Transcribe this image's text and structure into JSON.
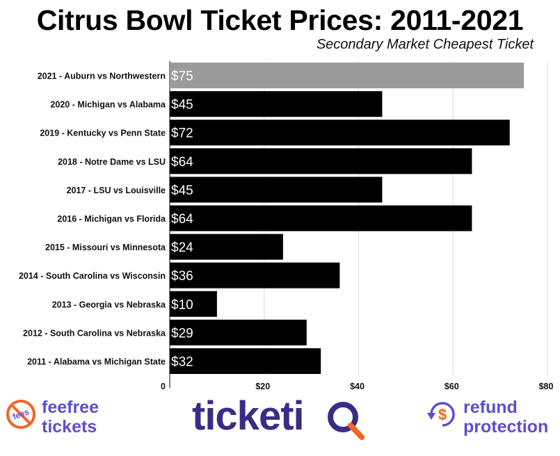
{
  "chart_data": {
    "type": "bar",
    "orientation": "horizontal",
    "title": "Citrus Bowl Ticket Prices: 2011-2021",
    "subtitle": "Secondary Market Cheapest Ticket",
    "categories": [
      "2021 - Auburn vs Northwestern",
      "2020 - Michigan vs Alabama",
      "2019 - Kentucky vs Penn State",
      "2018 - Notre Dame vs LSU",
      "2017 - LSU vs Louisville",
      "2016 - Michigan vs Florida",
      "2015 - Missouri vs Minnesota",
      "2014 - South Carolina vs Wisconsin",
      "2013 - Georgia vs Nebraska",
      "2012 - South Carolina vs Nebraska",
      "2011 - Alabama vs Michigan State"
    ],
    "values": [
      75,
      45,
      72,
      64,
      45,
      64,
      24,
      36,
      10,
      29,
      32
    ],
    "data_labels": [
      "$75",
      "$45",
      "$72",
      "$64",
      "$45",
      "$64",
      "$24",
      "$36",
      "$10",
      "$29",
      "$32"
    ],
    "xlim": [
      0,
      80
    ],
    "xticks": [
      0,
      20,
      40,
      60,
      80
    ],
    "xtick_labels": [
      "0",
      "$20",
      "$40",
      "$60",
      "$80"
    ],
    "grid": true,
    "colors": {
      "highlight": "#9b9b9b",
      "default": "#000000",
      "label_text": "#ffffff",
      "grid": "#d9d9d9"
    }
  },
  "footer": {
    "fees_logo": {
      "text": "feefree\ntickets",
      "badge_text": "fees",
      "color": "#5b4fd0",
      "accent": "#f26522"
    },
    "ticketiq_logo": {
      "text": "ticketiQ",
      "color": "#3a2c86",
      "accent": "#f26522"
    },
    "refund_logo": {
      "text": "refund\nprotection",
      "color": "#5b4fd0",
      "accent": "#f26522"
    }
  }
}
